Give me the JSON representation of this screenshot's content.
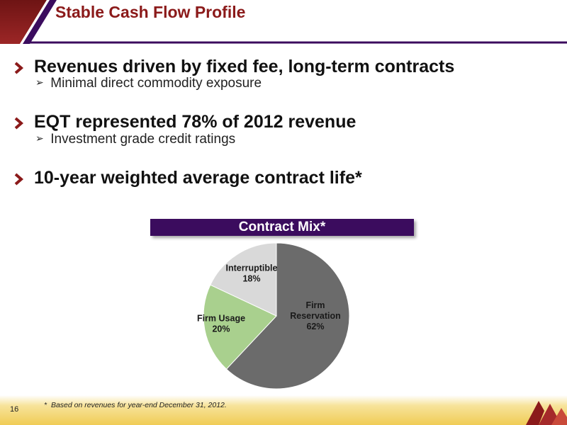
{
  "header": {
    "title": "Stable Cash Flow Profile"
  },
  "bullets": [
    {
      "text": "Revenues driven by fixed fee, long-term contracts",
      "sub": "Minimal direct commodity exposure"
    },
    {
      "text": "EQT represented 78% of 2012 revenue",
      "sub": "Investment grade credit ratings"
    },
    {
      "text": "10-year weighted average contract life*",
      "sub": ""
    }
  ],
  "chart_data": {
    "type": "pie",
    "title": "Contract Mix*",
    "slices": [
      {
        "label": "Firm Reservation",
        "label_lines": [
          "Firm",
          "Reservation"
        ],
        "value": 62,
        "value_label": "62%",
        "color": "#6b6b6b"
      },
      {
        "label": "Firm Usage",
        "label_lines": [
          "Firm Usage"
        ],
        "value": 20,
        "value_label": "20%",
        "color": "#a9d08e"
      },
      {
        "label": "Interruptible",
        "label_lines": [
          "Interruptible"
        ],
        "value": 18,
        "value_label": "18%",
        "color": "#d9d9d9"
      }
    ]
  },
  "footer": {
    "page_number": "16",
    "footnote_marker": "*",
    "footnote": "Based on revenues for year-end December 31, 2012."
  },
  "colors": {
    "brand_maroon": "#8b1a1a",
    "band_purple": "#3b0c5e",
    "footer_gold": "#f2d36b"
  }
}
